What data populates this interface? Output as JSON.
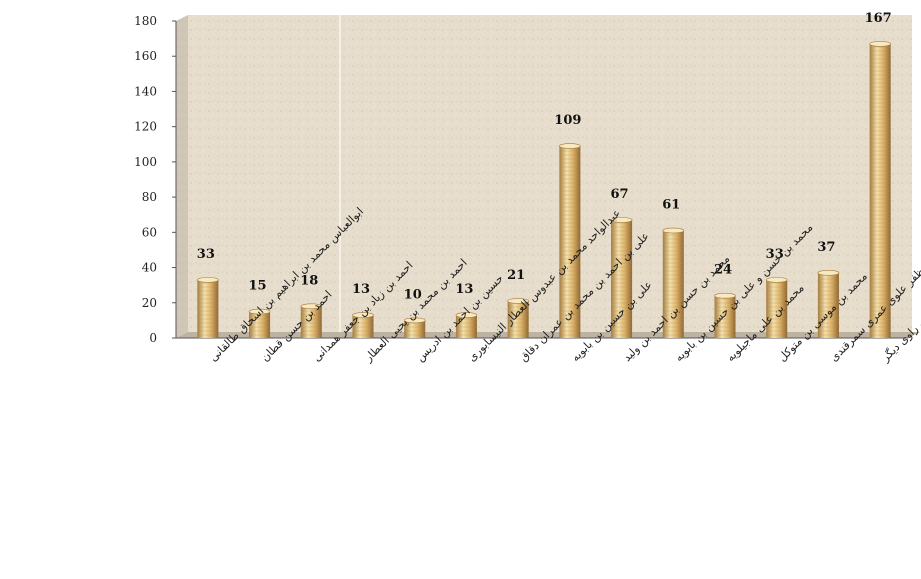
{
  "chart_data": {
    "type": "bar",
    "title": "",
    "xlabel": "",
    "ylabel": "",
    "ylim": [
      0,
      180
    ],
    "yticks": [
      0,
      20,
      40,
      60,
      80,
      100,
      120,
      140,
      160,
      180
    ],
    "grid": false,
    "legend": "none",
    "categories": [
      "ابوالعباس محمد بن ابراهیم بن اسحاق طالقانی",
      "احمد بن حسن قطان",
      "احمد بن زیاد بن جعفر همدانی",
      "احمد بن محمد بن یحیی العطار",
      "حسین بن احمد بن ادریس",
      "عبدالواحد محمد بن عبدوس العطار النیسابوری",
      "علی بن احمد بن محمد بن عمران دقاق",
      "علی بن حسین بن بابویه",
      "محمد بن حسن بن احمد بن ولید",
      "محمد بن حسن و علی بن حسین بن بابویه",
      "محمد بن علی ماجیلویه",
      "محمد بن موسی بن متوکل",
      "مظفر بن جعفر بن مظفر علوی عمری سمرقندی",
      "هفتاد و شش راوی دیگر"
    ],
    "values": [
      33,
      15,
      18,
      13,
      10,
      13,
      21,
      109,
      67,
      61,
      24,
      33,
      37,
      167
    ],
    "data_labels": [
      "33",
      "15",
      "18",
      "13",
      "10",
      "13",
      "21",
      "109",
      "67",
      "61",
      "24",
      "33",
      "37",
      "167"
    ],
    "colors": {
      "bar_light": "#f6e4b2",
      "bar_mid": "#dcb36c",
      "bar_dark": "#9a7236",
      "background": "#e6dccb",
      "floor": "#bdb3a3"
    }
  }
}
